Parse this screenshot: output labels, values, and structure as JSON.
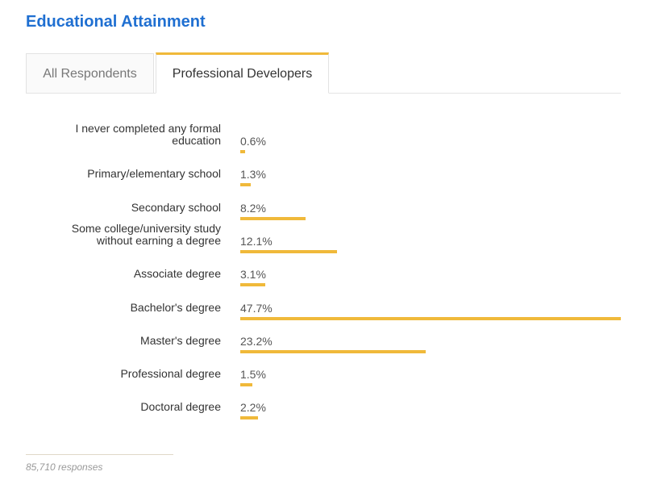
{
  "title": "Educational Attainment",
  "tabs": [
    {
      "label": "All Respondents",
      "active": false
    },
    {
      "label": "Professional Developers",
      "active": true
    }
  ],
  "colors": {
    "accent": "#f0b93a",
    "title": "#1f6fd1"
  },
  "footer": {
    "responses": "85,710 responses"
  },
  "chart_data": {
    "type": "bar",
    "orientation": "horizontal",
    "categories": [
      "I never completed any formal education",
      "Primary/elementary school",
      "Secondary school",
      "Some college/university study without earning a degree",
      "Associate degree",
      "Bachelor's degree",
      "Master's degree",
      "Professional degree",
      "Doctoral degree"
    ],
    "category_lines": [
      [
        "I never completed any formal",
        "education"
      ],
      [
        "Primary/elementary school"
      ],
      [
        "Secondary school"
      ],
      [
        "Some college/university study",
        "without earning a degree"
      ],
      [
        "Associate degree"
      ],
      [
        "Bachelor's degree"
      ],
      [
        "Master's degree"
      ],
      [
        "Professional degree"
      ],
      [
        "Doctoral degree"
      ]
    ],
    "values": [
      0.6,
      1.3,
      8.2,
      12.1,
      3.1,
      47.7,
      23.2,
      1.5,
      2.2
    ],
    "value_labels": [
      "0.6%",
      "1.3%",
      "8.2%",
      "12.1%",
      "3.1%",
      "47.7%",
      "23.2%",
      "1.5%",
      "2.2%"
    ],
    "xlim": [
      0,
      47.7
    ],
    "grid": false
  }
}
